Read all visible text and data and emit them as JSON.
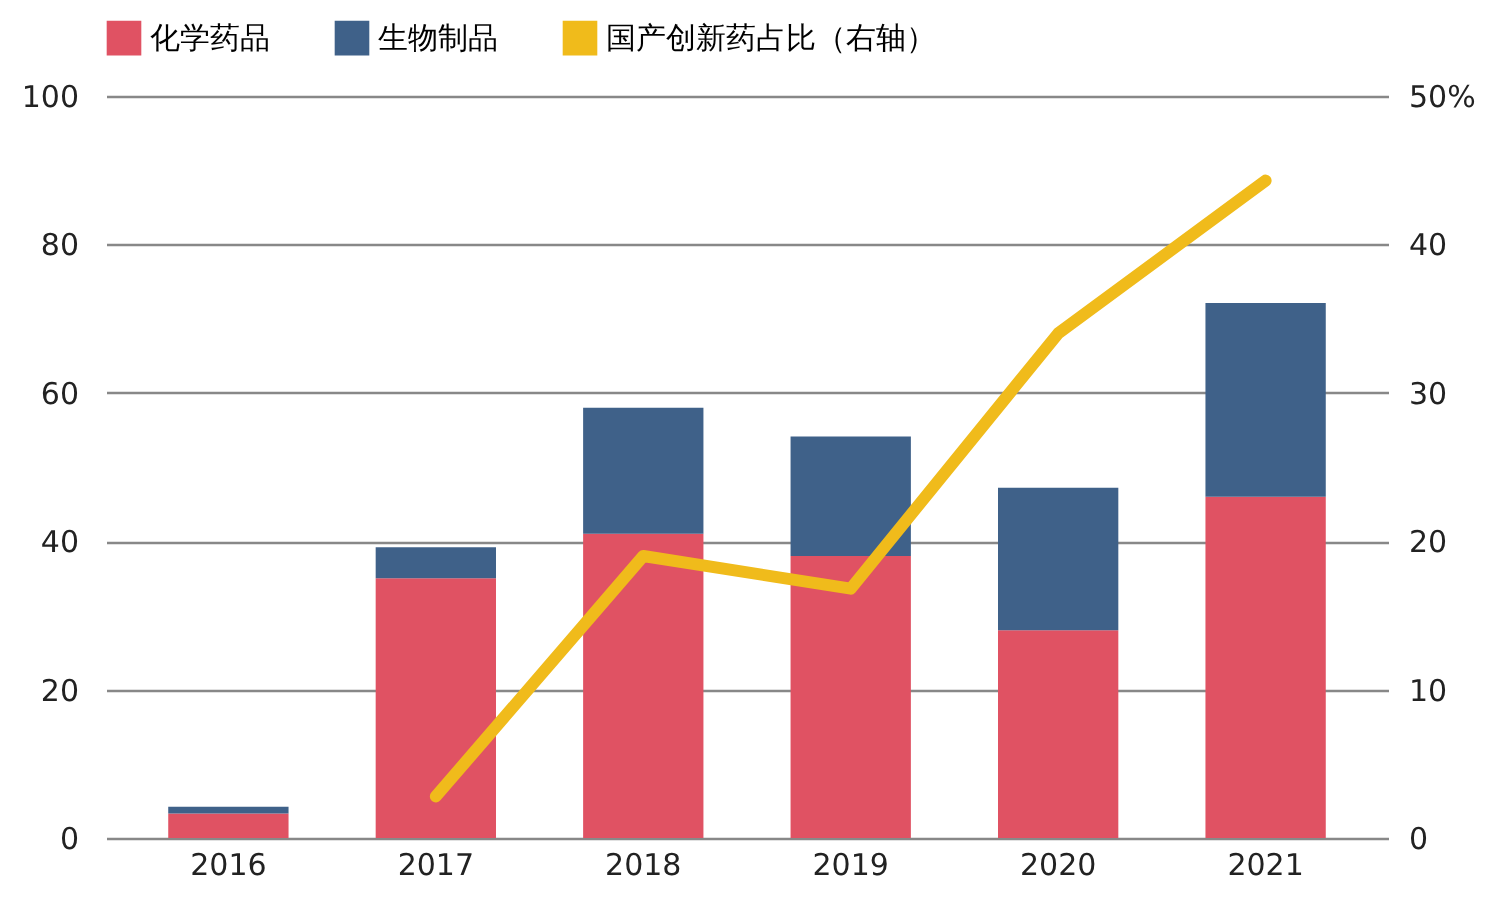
{
  "chart_data": {
    "type": "bar",
    "stacked": true,
    "categories": [
      "2016",
      "2017",
      "2018",
      "2019",
      "2020",
      "2021"
    ],
    "series": [
      {
        "name": "化学药品",
        "color": "#e05263",
        "values": [
          3.3,
          35,
          41,
          38,
          28,
          46
        ]
      },
      {
        "name": "生物制品",
        "color": "#3f6189",
        "values": [
          0.9,
          4.2,
          17,
          16.1,
          19.2,
          26.1
        ]
      },
      {
        "name": "国产创新药占比（右轴）",
        "type": "line",
        "axis": "y2",
        "color": "#f0bb1b",
        "values": [
          null,
          2.8,
          19,
          16.8,
          34,
          44.3
        ]
      }
    ],
    "ylim": [
      0,
      100
    ],
    "yticks": [
      0,
      20,
      40,
      60,
      80,
      100
    ],
    "y2lim": [
      0,
      50
    ],
    "y2ticks": [
      0,
      10,
      20,
      30,
      40,
      {
        "value": 50,
        "label": "50%"
      }
    ],
    "grid": "y",
    "legend": "top left"
  }
}
